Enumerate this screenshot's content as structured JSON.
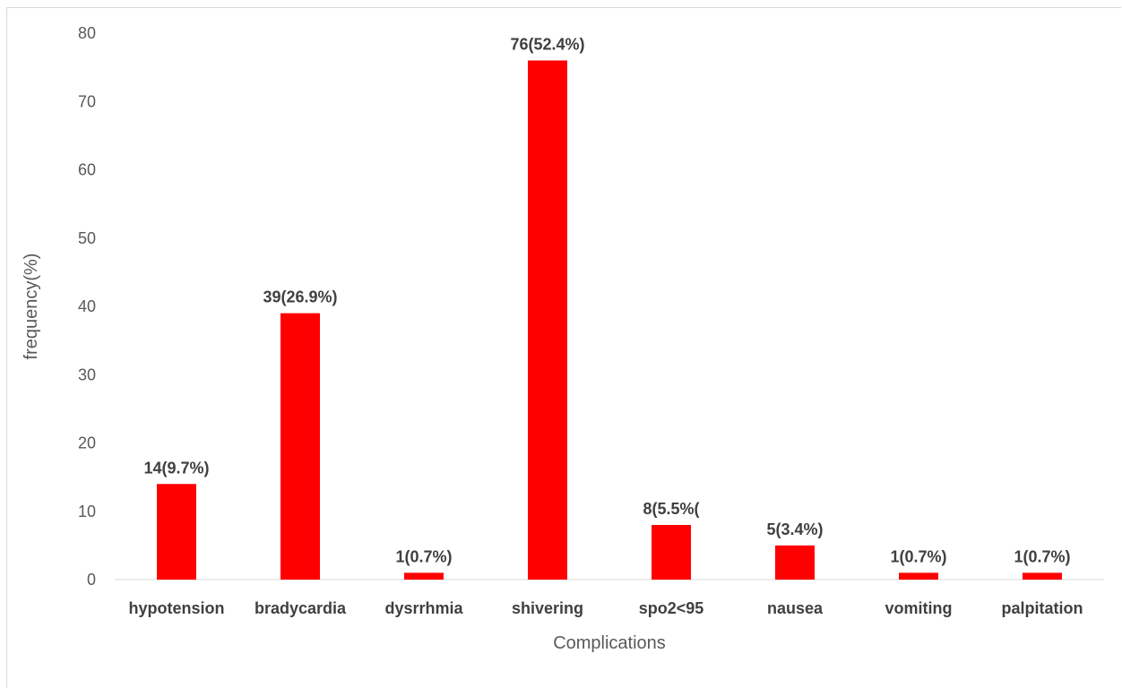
{
  "chart_data": {
    "type": "bar",
    "title": "",
    "xlabel": "Complications",
    "ylabel": "frequency(%)",
    "ylim": [
      0,
      80
    ],
    "yticks": [
      0,
      10,
      20,
      30,
      40,
      50,
      60,
      70,
      80
    ],
    "grid": false,
    "legend": "none",
    "bar_color": "#ff0000",
    "categories": [
      "hypotension",
      "bradycardia",
      "dysrrhmia",
      "shivering",
      "spo2<95",
      "nausea",
      "vomiting",
      "palpitation"
    ],
    "values": [
      14,
      39,
      1,
      76,
      8,
      5,
      1,
      1
    ],
    "data_labels": [
      "14(9.7%)",
      "39(26.9%)",
      "1(0.7%)",
      "76(52.4%)",
      "8(5.5%(",
      "5(3.4%)",
      "1(0.7%)",
      "1(0.7%)"
    ]
  }
}
